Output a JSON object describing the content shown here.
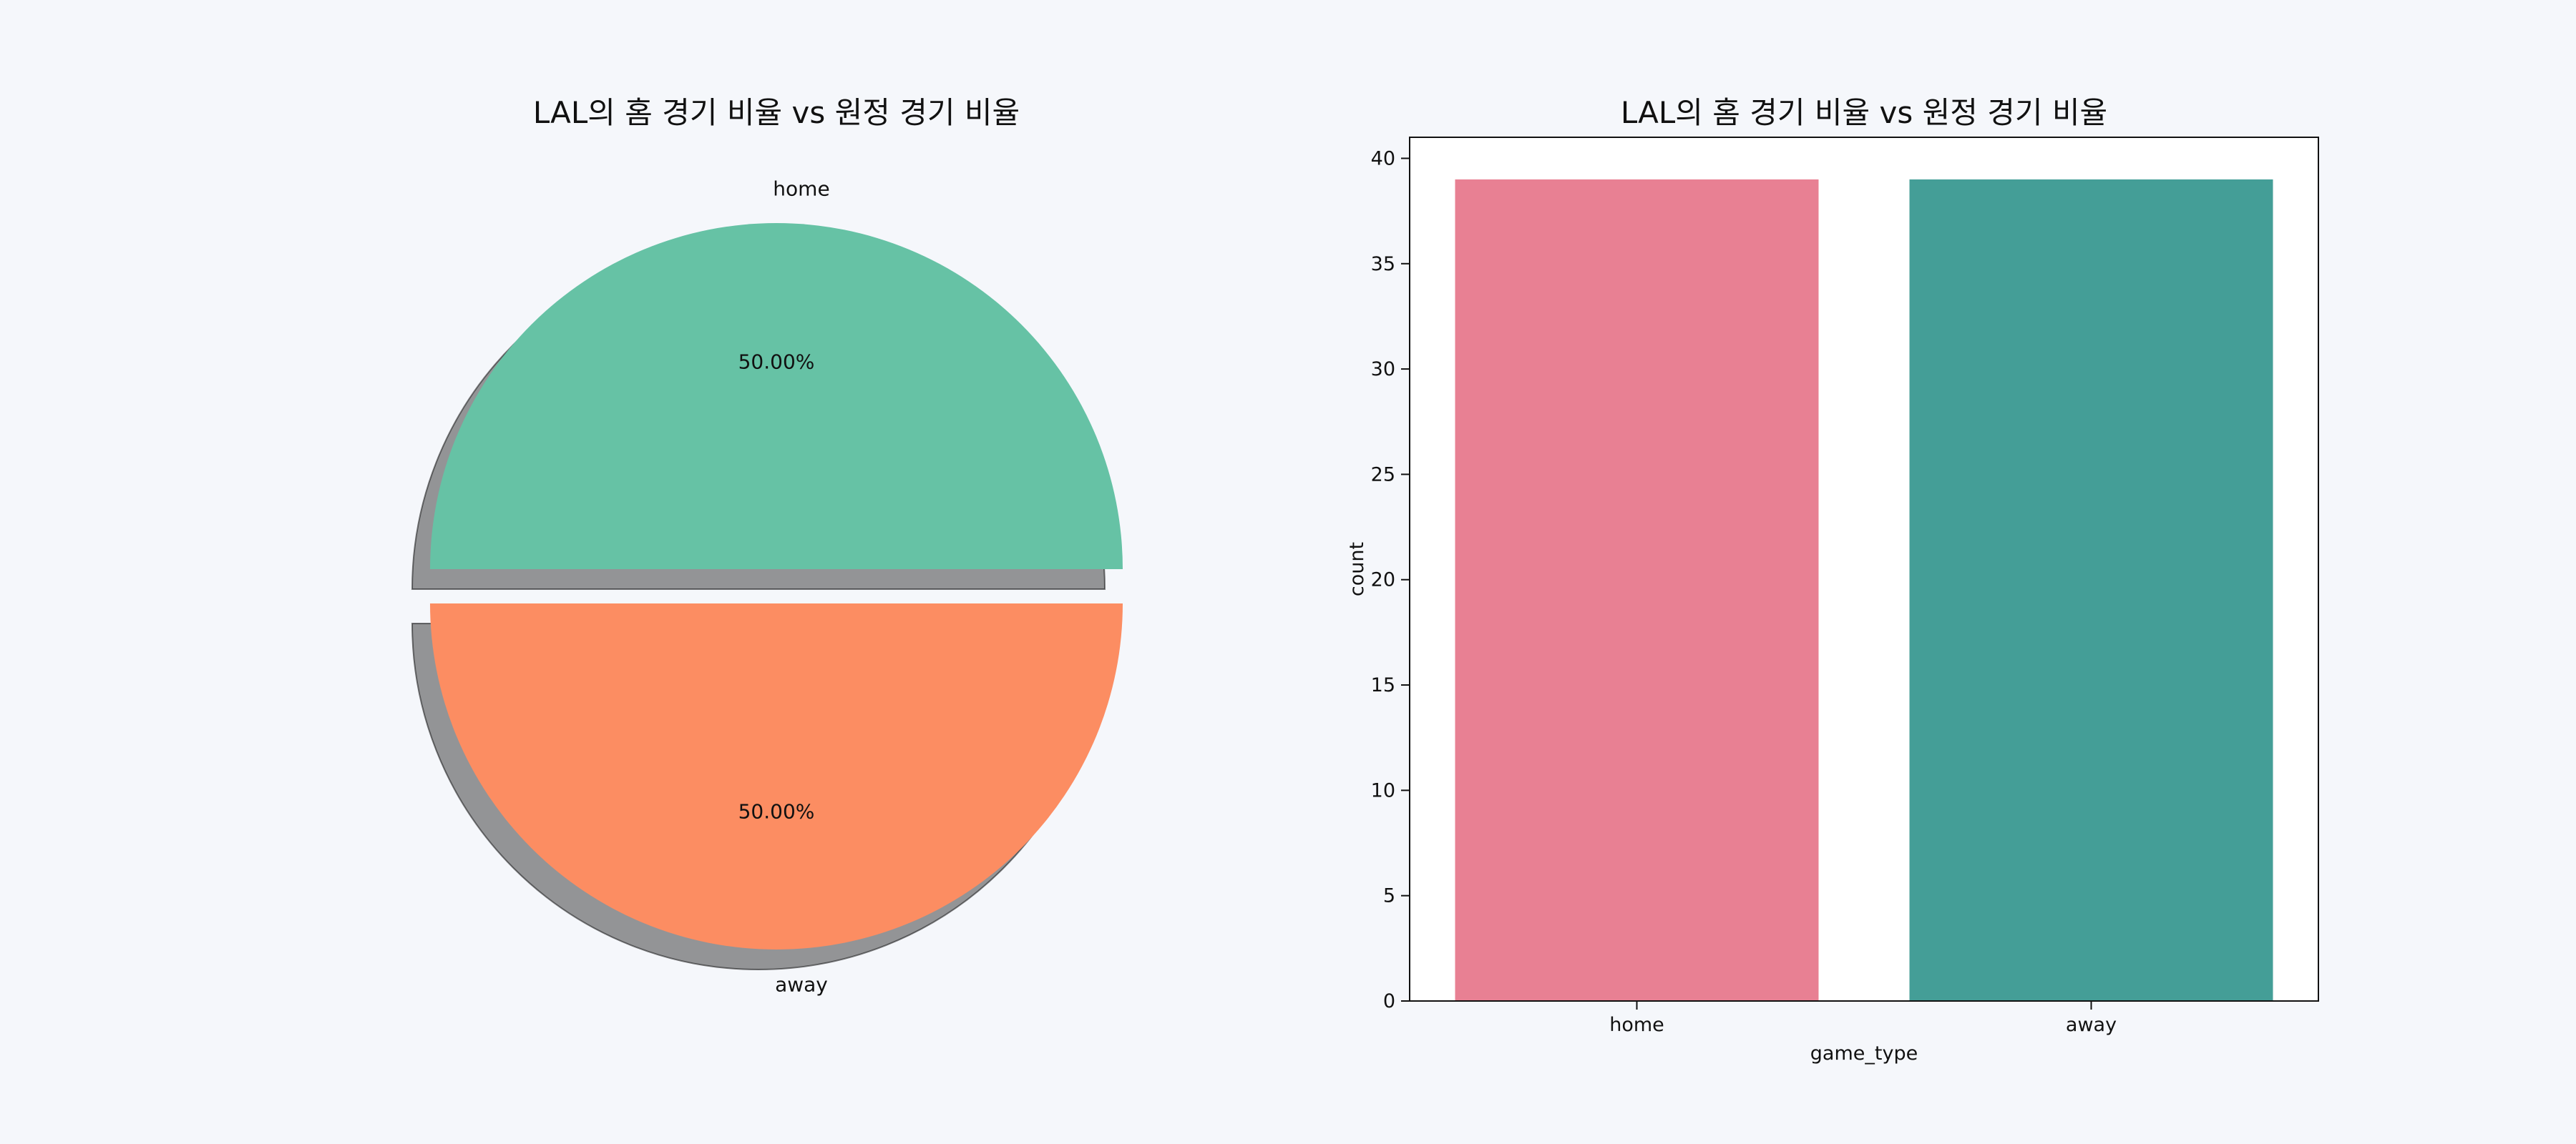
{
  "chart_data": [
    {
      "type": "pie",
      "title": "LAL의 홈 경기 비율 vs 원정 경기 비율",
      "labels": [
        "home",
        "away"
      ],
      "values": [
        50.0,
        50.0
      ],
      "value_labels": [
        "50.00%",
        "50.00%"
      ],
      "colors": [
        "#66c2a5",
        "#fc8d62"
      ],
      "explode": true,
      "shadow": true
    },
    {
      "type": "bar",
      "title": "LAL의 홈 경기 비율 vs 원정 경기 비율",
      "categories": [
        "home",
        "away"
      ],
      "values": [
        39,
        39
      ],
      "colors": [
        "#e88093",
        "#449e97"
      ],
      "xlabel": "game_type",
      "ylabel": "count",
      "ylim": [
        0,
        41
      ],
      "yticks": [
        0,
        5,
        10,
        15,
        20,
        25,
        30,
        35,
        40
      ],
      "grid": false
    }
  ]
}
